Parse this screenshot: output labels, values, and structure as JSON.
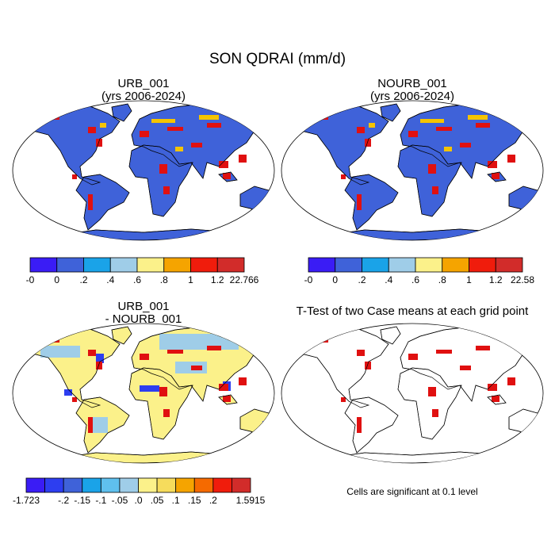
{
  "title": "SON QDRAI (mm/d)",
  "panels": [
    {
      "title": [
        "URB_001",
        "(yrs 2006-2024)"
      ],
      "land": "#3f62d9",
      "colorbar": {
        "colors": [
          "#3a1cf5",
          "#3f62d9",
          "#1aa3e8",
          "#9fcde8",
          "#fbf18a",
          "#f5a400",
          "#f01c0c",
          "#d22c2a"
        ],
        "labels": [
          "-0",
          "0",
          ".2",
          ".4",
          ".6",
          ".8",
          "1",
          "1.2",
          "22.766"
        ]
      }
    },
    {
      "title": [
        "NOURB_001",
        "(yrs 2006-2024)"
      ],
      "land": "#3f62d9",
      "colorbar": {
        "colors": [
          "#3a1cf5",
          "#3f62d9",
          "#1aa3e8",
          "#9fcde8",
          "#fbf18a",
          "#f5a400",
          "#f01c0c",
          "#d22c2a"
        ],
        "labels": [
          "-0",
          "0",
          ".2",
          ".4",
          ".6",
          ".8",
          "1",
          "1.2",
          "22.58"
        ]
      }
    },
    {
      "title": [
        "URB_001",
        "- NOURB_001"
      ],
      "land": "#fbf18a",
      "colorbar": {
        "colors": [
          "#3a1cf5",
          "#2d3ef0",
          "#3f62d9",
          "#1aa3e8",
          "#5fc0ee",
          "#9fcde8",
          "#fbf18a",
          "#f6dc5c",
          "#f5a400",
          "#f56a00",
          "#f01c0c",
          "#d22c2a"
        ],
        "labels": [
          "-1.723",
          null,
          "-.2",
          "-.15",
          "-.1",
          "-.05",
          ".0",
          ".05",
          ".1",
          ".15",
          ".2",
          null,
          "1.5915"
        ]
      }
    },
    {
      "title": [
        "T-Test of two Case means at each grid point"
      ],
      "land": "#ffffff",
      "note": "Cells are significant at 0.1 level"
    }
  ]
}
